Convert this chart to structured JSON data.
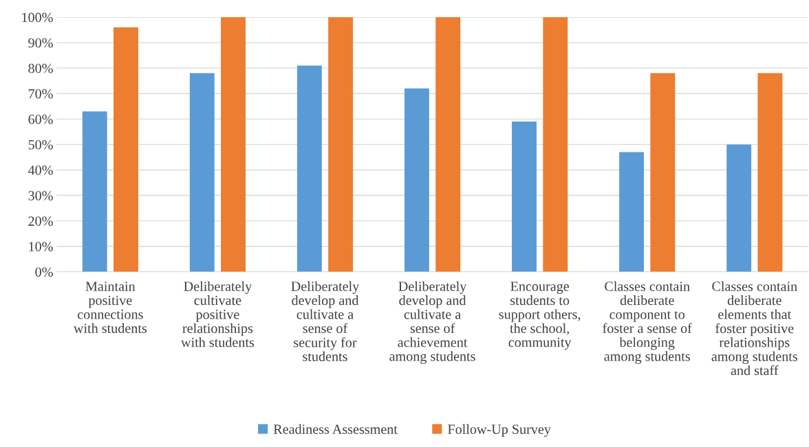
{
  "chart_data": {
    "type": "bar",
    "categories": [
      "Maintain\npositive\nconnections\nwith students",
      "Deliberately\ncultivate\npositive\nrelationships\nwith students",
      "Deliberately\ndevelop and\ncultivate a\nsense of\nsecurity for\nstudents",
      "Deliberately\ndevelop and\ncultivate a\nsense of\nachievement\namong students",
      "Encourage\nstudents to\nsupport others,\nthe school,\ncommunity",
      "Classes contain\ndeliberate\ncomponent to\nfoster a sense of\nbelonging\namong students",
      "Classes contain\ndeliberate\nelements that\nfoster positive\nrelationships\namong students\nand staff"
    ],
    "series": [
      {
        "name": "Readiness Assessment",
        "color": "#5b9bd5",
        "values": [
          63,
          78,
          81,
          72,
          59,
          47,
          50
        ]
      },
      {
        "name": "Follow-Up Survey",
        "color": "#ed7d31",
        "values": [
          96,
          100,
          100,
          100,
          100,
          78,
          78
        ]
      }
    ],
    "ylim": [
      0,
      100
    ],
    "yticks": [
      {
        "value": 0,
        "label": "0%"
      },
      {
        "value": 10,
        "label": "10%"
      },
      {
        "value": 20,
        "label": "20%"
      },
      {
        "value": 30,
        "label": "30%"
      },
      {
        "value": 40,
        "label": "40%"
      },
      {
        "value": 50,
        "label": "50%"
      },
      {
        "value": 60,
        "label": "60%"
      },
      {
        "value": 70,
        "label": "70%"
      },
      {
        "value": 80,
        "label": "80%"
      },
      {
        "value": 90,
        "label": "90%"
      },
      {
        "value": 100,
        "label": "100%"
      }
    ],
    "grid": "y",
    "legend": "bottom"
  }
}
